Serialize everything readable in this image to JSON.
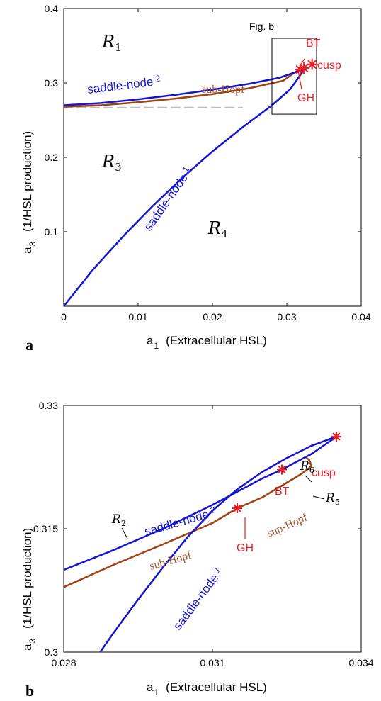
{
  "colors": {
    "saddle_node": "#1414d2",
    "hopf": "#a0410f",
    "points": "#ee1c24",
    "dashed": "#bdbdbd",
    "text_hopf": "#a0522d"
  },
  "chart_data": [
    {
      "panel": "a",
      "type": "line",
      "xlabel": "a",
      "xlabel_sub": "1",
      "xlabel_desc": "(Extracellular HSL)",
      "ylabel": "a",
      "ylabel_sub": "3",
      "ylabel_desc": "(1/HSL production)",
      "xlim": [
        0,
        0.04
      ],
      "ylim": [
        0,
        0.4
      ],
      "xticks": [
        0,
        0.01,
        0.02,
        0.03,
        0.04
      ],
      "xtick_labels": [
        "0",
        "0.01",
        "0.02",
        "0.03",
        "0.04"
      ],
      "yticks": [
        0.1,
        0.2,
        0.3,
        0.4
      ],
      "ytick_labels": [
        "0.1",
        "0.2",
        "0.3",
        "0.4"
      ],
      "series": [
        {
          "key": "sn1",
          "x": [
            0,
            0.004,
            0.008,
            0.012,
            0.016,
            0.02,
            0.024,
            0.028,
            0.0305,
            0.0322
          ],
          "y": [
            0,
            0.05,
            0.094,
            0.135,
            0.173,
            0.208,
            0.24,
            0.27,
            0.292,
            0.316
          ]
        },
        {
          "key": "sn2",
          "x": [
            0,
            0.005,
            0.01,
            0.015,
            0.02,
            0.025,
            0.029,
            0.0322
          ],
          "y": [
            0.27,
            0.273,
            0.278,
            0.284,
            0.291,
            0.299,
            0.307,
            0.318
          ]
        },
        {
          "key": "subhopf",
          "x": [
            0,
            0.005,
            0.01,
            0.015,
            0.02,
            0.025,
            0.0295,
            0.0315
          ],
          "y": [
            0.268,
            0.27,
            0.274,
            0.279,
            0.285,
            0.293,
            0.303,
            0.317
          ]
        },
        {
          "key": "dashed",
          "x": [
            0,
            0.024
          ],
          "y": [
            0.267,
            0.267
          ]
        }
      ],
      "points": [
        {
          "label": "BT",
          "x": 0.0323,
          "y": 0.32
        },
        {
          "label": "GH",
          "x": 0.0318,
          "y": 0.318
        },
        {
          "label": "cusp",
          "x": 0.0334,
          "y": 0.325
        }
      ],
      "box": {
        "label": "Fig. b",
        "x": [
          0.028,
          0.034
        ],
        "y": [
          0.258,
          0.36
        ]
      },
      "curve_labels": {
        "sn1": "saddle-node",
        "sn1_sub": "1",
        "sn2": "saddle-node",
        "sn2_sub": "2",
        "subhopf": "sub-Hopf"
      },
      "regions": [
        {
          "label": "R",
          "sub": "1",
          "x": 0.0055,
          "y": 0.36
        },
        {
          "label": "R",
          "sub": "3",
          "x": 0.0055,
          "y": 0.19
        },
        {
          "label": "R",
          "sub": "4",
          "x": 0.0215,
          "y": 0.095
        }
      ],
      "panel_label": "a"
    },
    {
      "panel": "b",
      "type": "line",
      "xlabel": "a",
      "xlabel_sub": "1",
      "xlabel_desc": "(Extracellular HSL)",
      "ylabel": "a",
      "ylabel_sub": "3",
      "ylabel_desc": "(1/HSL production)",
      "xlim": [
        0.028,
        0.034
      ],
      "ylim": [
        0.3,
        0.33
      ],
      "xticks": [
        0.028,
        0.031,
        0.034
      ],
      "xtick_labels": [
        "0.028",
        "0.031",
        "0.034"
      ],
      "yticks": [
        0.3,
        0.315,
        0.33
      ],
      "ytick_labels": [
        "0.3",
        "0.315",
        "0.33"
      ],
      "series": [
        {
          "key": "sn1",
          "x": [
            0.0287,
            0.029,
            0.0295,
            0.03,
            0.0305,
            0.031,
            0.0315,
            0.032,
            0.0325,
            0.033,
            0.0335
          ],
          "y": [
            0.2997,
            0.3023,
            0.3064,
            0.3103,
            0.314,
            0.3172,
            0.3198,
            0.3219,
            0.3236,
            0.3251,
            0.3262
          ]
        },
        {
          "key": "sn2",
          "x": [
            0.028,
            0.029,
            0.03,
            0.031,
            0.032,
            0.0324,
            0.033,
            0.0335
          ],
          "y": [
            0.31,
            0.3124,
            0.315,
            0.3179,
            0.3211,
            0.3222,
            0.3241,
            0.3262
          ]
        },
        {
          "key": "subhopf",
          "x": [
            0.028,
            0.029,
            0.03,
            0.031,
            0.0315
          ],
          "y": [
            0.3079,
            0.3106,
            0.3131,
            0.3157,
            0.3175
          ]
        },
        {
          "key": "suphopf",
          "x": [
            0.0315,
            0.032,
            0.0325,
            0.0328,
            0.033,
            0.03295,
            0.0329
          ],
          "y": [
            0.3175,
            0.3188,
            0.3206,
            0.3217,
            0.3226,
            0.3234,
            0.3236
          ]
        }
      ],
      "points": [
        {
          "label": "BT",
          "x": 0.0324,
          "y": 0.3222
        },
        {
          "label": "GH",
          "x": 0.0315,
          "y": 0.3175
        },
        {
          "label": "cusp",
          "x": 0.0335,
          "y": 0.3262
        }
      ],
      "curve_labels": {
        "sn1": "saddle-node",
        "sn1_sub": "1",
        "sn2": "saddle-node",
        "sn2_sub": "2",
        "subhopf": "sub-Hopf",
        "suphopf": "sup-Hopf"
      },
      "regions": [
        {
          "label": "R",
          "sub": "2",
          "x": 0.0286,
          "y": 0.3155
        },
        {
          "label": "R",
          "sub": "6",
          "x": 0.0326,
          "y": 0.3275
        },
        {
          "label": "R",
          "sub": "5",
          "x": 0.0336,
          "y": 0.3232
        }
      ],
      "panel_label": "b"
    }
  ]
}
